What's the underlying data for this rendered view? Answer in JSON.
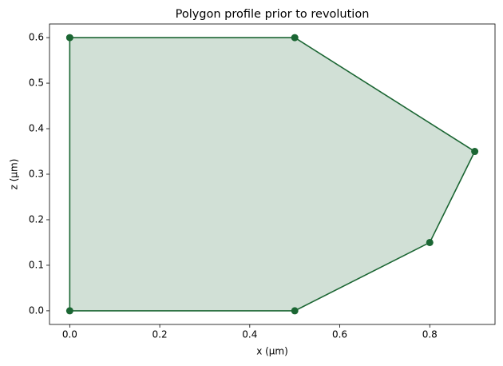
{
  "chart_data": {
    "type": "polygon",
    "title": "Polygon profile prior to revolution",
    "x_label": "x (µm)",
    "y_label": "z (µm)",
    "x": [
      0,
      0.5,
      0.8,
      0.9,
      0.5,
      0
    ],
    "y": [
      0,
      0,
      0.15,
      0.35,
      0.6,
      0.6
    ],
    "color": "#1b6633",
    "fill_alpha": 0.2,
    "xlim": [
      -0.045,
      0.945
    ],
    "xticks": [
      {
        "value": 0,
        "label": "0.0"
      },
      0.2,
      0.4,
      0.6,
      0.8
    ],
    "ylim": [
      -0.03,
      0.63
    ],
    "yticks": [
      {
        "value": 0,
        "label": "0.0"
      },
      0.1,
      0.2,
      0.3,
      0.4,
      0.5,
      0.6
    ],
    "grid": false
  }
}
